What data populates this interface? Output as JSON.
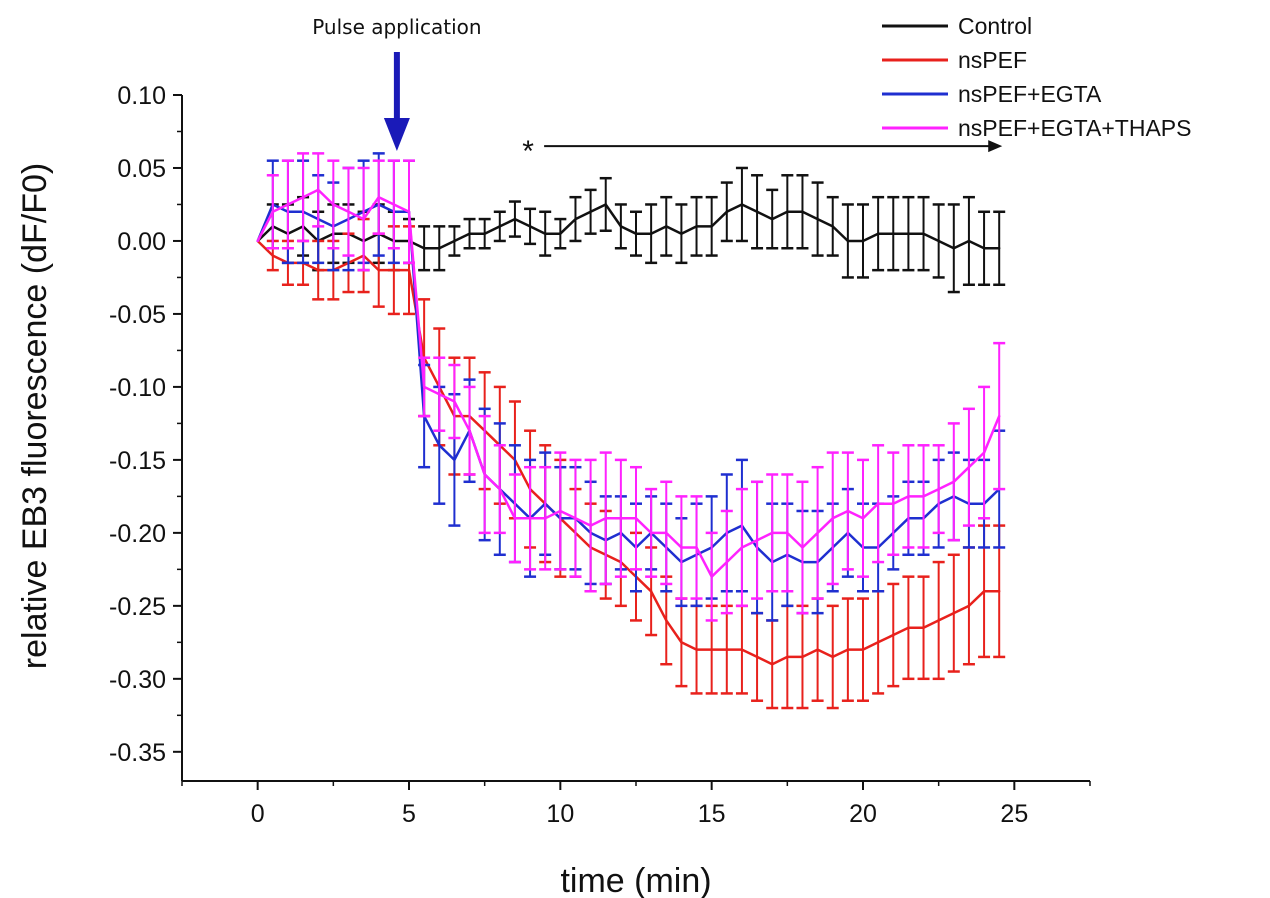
{
  "chart_data": {
    "type": "line",
    "title": "",
    "xlabel": "time (min)",
    "ylabel": "relative EB3 fluorescence (dF/F0)",
    "xlim": [
      -2.5,
      27.5
    ],
    "ylim": [
      -0.37,
      0.1
    ],
    "xticks": [
      0,
      5,
      10,
      15,
      20,
      25
    ],
    "xtick_labels": [
      "0",
      "5",
      "10",
      "15",
      "20",
      "25"
    ],
    "yticks": [
      0.1,
      0.05,
      0.0,
      -0.05,
      -0.1,
      -0.15,
      -0.2,
      -0.25,
      -0.3,
      -0.35
    ],
    "ytick_labels": [
      "0.10",
      "0.05",
      "0.00",
      "-0.05",
      "-0.10",
      "-0.15",
      "-0.20",
      "-0.25",
      "-0.30",
      "-0.35"
    ],
    "grid": false,
    "legend_position": "top-right",
    "x": [
      0,
      0.5,
      1,
      1.5,
      2,
      2.5,
      3,
      3.5,
      4,
      4.5,
      5,
      5.5,
      6,
      6.5,
      7,
      7.5,
      8,
      8.5,
      9,
      9.5,
      10,
      10.5,
      11,
      11.5,
      12,
      12.5,
      13,
      13.5,
      14,
      14.5,
      15,
      15.5,
      16,
      16.5,
      17,
      17.5,
      18,
      18.5,
      19,
      19.5,
      20,
      20.5,
      21,
      21.5,
      22,
      22.5,
      23,
      23.5,
      24,
      24.5
    ],
    "series": [
      {
        "name": "Control",
        "color": "#111111",
        "values": [
          0,
          0.01,
          0.005,
          0.01,
          0.0,
          0.005,
          0.005,
          0.0,
          0.005,
          0.0,
          0.0,
          -0.005,
          -0.005,
          0.0,
          0.005,
          0.005,
          0.01,
          0.015,
          0.01,
          0.005,
          0.005,
          0.015,
          0.02,
          0.025,
          0.01,
          0.005,
          0.005,
          0.01,
          0.005,
          0.01,
          0.01,
          0.02,
          0.025,
          0.02,
          0.015,
          0.02,
          0.02,
          0.015,
          0.01,
          0.0,
          0.0,
          0.005,
          0.005,
          0.005,
          0.005,
          0.0,
          -0.005,
          0.0,
          -0.005,
          -0.005
        ],
        "errors": [
          0,
          0.015,
          0.02,
          0.02,
          0.02,
          0.02,
          0.02,
          0.02,
          0.02,
          0.02,
          0.015,
          0.015,
          0.015,
          0.01,
          0.01,
          0.01,
          0.01,
          0.012,
          0.012,
          0.015,
          0.01,
          0.015,
          0.015,
          0.018,
          0.015,
          0.015,
          0.02,
          0.02,
          0.02,
          0.02,
          0.02,
          0.02,
          0.025,
          0.025,
          0.02,
          0.025,
          0.025,
          0.025,
          0.02,
          0.025,
          0.025,
          0.025,
          0.025,
          0.025,
          0.025,
          0.025,
          0.03,
          0.03,
          0.025,
          0.025
        ]
      },
      {
        "name": "nsPEF",
        "color": "#e8211c",
        "values": [
          0,
          -0.01,
          -0.015,
          -0.015,
          -0.02,
          -0.02,
          -0.015,
          -0.01,
          -0.02,
          -0.02,
          -0.02,
          -0.08,
          -0.1,
          -0.12,
          -0.12,
          -0.13,
          -0.14,
          -0.15,
          -0.17,
          -0.18,
          -0.19,
          -0.2,
          -0.21,
          -0.215,
          -0.22,
          -0.23,
          -0.24,
          -0.26,
          -0.275,
          -0.28,
          -0.28,
          -0.28,
          -0.28,
          -0.285,
          -0.29,
          -0.285,
          -0.285,
          -0.28,
          -0.285,
          -0.28,
          -0.28,
          -0.275,
          -0.27,
          -0.265,
          -0.265,
          -0.26,
          -0.255,
          -0.25,
          -0.24,
          -0.24
        ],
        "errors": [
          0,
          0.01,
          0.015,
          0.015,
          0.02,
          0.02,
          0.02,
          0.025,
          0.025,
          0.03,
          0.03,
          0.04,
          0.04,
          0.04,
          0.04,
          0.04,
          0.04,
          0.04,
          0.04,
          0.04,
          0.04,
          0.03,
          0.03,
          0.03,
          0.03,
          0.03,
          0.03,
          0.03,
          0.03,
          0.03,
          0.03,
          0.03,
          0.03,
          0.03,
          0.03,
          0.035,
          0.035,
          0.035,
          0.035,
          0.035,
          0.035,
          0.035,
          0.035,
          0.035,
          0.035,
          0.04,
          0.04,
          0.04,
          0.045,
          0.045
        ]
      },
      {
        "name": "nsPEF+EGTA",
        "color": "#1f2fd0",
        "values": [
          0,
          0.025,
          0.02,
          0.02,
          0.015,
          0.01,
          0.015,
          0.02,
          0.025,
          0.02,
          0.02,
          -0.12,
          -0.14,
          -0.15,
          -0.13,
          -0.16,
          -0.17,
          -0.18,
          -0.19,
          -0.18,
          -0.19,
          -0.19,
          -0.2,
          -0.205,
          -0.2,
          -0.21,
          -0.2,
          -0.21,
          -0.22,
          -0.215,
          -0.21,
          -0.2,
          -0.195,
          -0.21,
          -0.22,
          -0.215,
          -0.22,
          -0.22,
          -0.21,
          -0.2,
          -0.21,
          -0.21,
          -0.2,
          -0.19,
          -0.19,
          -0.18,
          -0.175,
          -0.18,
          -0.18,
          -0.17
        ],
        "errors": [
          0,
          0.03,
          0.035,
          0.035,
          0.03,
          0.03,
          0.035,
          0.035,
          0.035,
          0.035,
          0.035,
          0.035,
          0.04,
          0.045,
          0.035,
          0.045,
          0.045,
          0.04,
          0.04,
          0.035,
          0.035,
          0.035,
          0.035,
          0.03,
          0.025,
          0.03,
          0.025,
          0.03,
          0.03,
          0.035,
          0.035,
          0.04,
          0.045,
          0.045,
          0.04,
          0.035,
          0.035,
          0.035,
          0.03,
          0.03,
          0.03,
          0.03,
          0.025,
          0.025,
          0.025,
          0.03,
          0.03,
          0.03,
          0.03,
          0.04
        ]
      },
      {
        "name": "nsPEF+EGTA+THAPS",
        "color": "#ff22ff",
        "values": [
          0,
          0.02,
          0.025,
          0.03,
          0.035,
          0.025,
          0.02,
          0.015,
          0.03,
          0.025,
          0.02,
          -0.1,
          -0.105,
          -0.11,
          -0.13,
          -0.16,
          -0.17,
          -0.19,
          -0.19,
          -0.19,
          -0.185,
          -0.19,
          -0.195,
          -0.19,
          -0.19,
          -0.19,
          -0.2,
          -0.2,
          -0.21,
          -0.21,
          -0.23,
          -0.22,
          -0.21,
          -0.205,
          -0.2,
          -0.2,
          -0.21,
          -0.2,
          -0.19,
          -0.185,
          -0.19,
          -0.18,
          -0.18,
          -0.175,
          -0.175,
          -0.17,
          -0.165,
          -0.155,
          -0.145,
          -0.12
        ],
        "errors": [
          0,
          0.025,
          0.03,
          0.03,
          0.025,
          0.03,
          0.03,
          0.035,
          0.025,
          0.03,
          0.035,
          0.02,
          0.025,
          0.025,
          0.03,
          0.04,
          0.03,
          0.03,
          0.035,
          0.035,
          0.04,
          0.04,
          0.045,
          0.045,
          0.04,
          0.035,
          0.03,
          0.035,
          0.035,
          0.035,
          0.03,
          0.035,
          0.04,
          0.04,
          0.04,
          0.04,
          0.045,
          0.045,
          0.045,
          0.04,
          0.04,
          0.04,
          0.035,
          0.035,
          0.035,
          0.03,
          0.04,
          0.04,
          0.045,
          0.05
        ]
      }
    ],
    "annotations": {
      "pulse_label": "Pulse application",
      "pulse_time": 4.6,
      "pulse_color": "#1a1ab8",
      "significance_marker": "*",
      "significance_from": 9.2,
      "significance_to": 24.6,
      "significance_y": 0.065
    }
  }
}
